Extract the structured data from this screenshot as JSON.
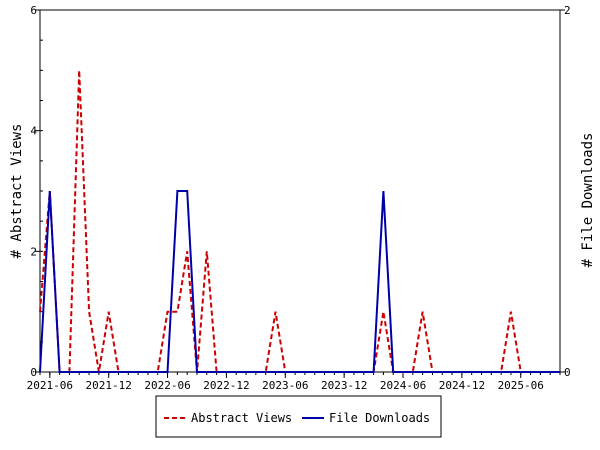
{
  "chart_data": {
    "type": "line",
    "xlabel": "",
    "ylabel_left": "# Abstract Views",
    "ylabel_right": "# File Downloads",
    "xlim": [
      "2021-05",
      "2025-10"
    ],
    "ylim_left": [
      0,
      6
    ],
    "ylim_right": [
      0,
      2
    ],
    "x_ticks": [
      "2021-06",
      "2021-12",
      "2022-06",
      "2022-12",
      "2023-06",
      "2023-12",
      "2024-06",
      "2024-12",
      "2025-06"
    ],
    "y_ticks_left": [
      0,
      2,
      4,
      6
    ],
    "y_ticks_right": [
      0,
      2
    ],
    "legend_position": "bottom",
    "grid": false,
    "colors": {
      "abstract_views": "#cc0000",
      "file_downloads": "#0000aa"
    },
    "series": [
      {
        "name": "Abstract Views",
        "axis": "left",
        "style": "dashed",
        "x": [
          "2021-05",
          "2021-06",
          "2021-07",
          "2021-08",
          "2021-09",
          "2021-10",
          "2021-11",
          "2021-12",
          "2022-01",
          "2022-02",
          "2022-03",
          "2022-04",
          "2022-05",
          "2022-06",
          "2022-07",
          "2022-08",
          "2022-09",
          "2022-10",
          "2022-11",
          "2022-12",
          "2023-01",
          "2023-02",
          "2023-03",
          "2023-04",
          "2023-05",
          "2023-06",
          "2023-07",
          "2023-08",
          "2023-09",
          "2023-10",
          "2023-11",
          "2023-12",
          "2024-01",
          "2024-02",
          "2024-03",
          "2024-04",
          "2024-05",
          "2024-06",
          "2024-07",
          "2024-08",
          "2024-09",
          "2024-10",
          "2024-11",
          "2024-12",
          "2025-01",
          "2025-02",
          "2025-03",
          "2025-04",
          "2025-05",
          "2025-06",
          "2025-07",
          "2025-08",
          "2025-09",
          "2025-10"
        ],
        "values": [
          1,
          3,
          0,
          0,
          5,
          1,
          0,
          1,
          0,
          0,
          0,
          0,
          0,
          1,
          1,
          2,
          0,
          2,
          0,
          0,
          0,
          0,
          0,
          0,
          1,
          0,
          0,
          0,
          0,
          0,
          0,
          0,
          0,
          0,
          0,
          1,
          0,
          0,
          0,
          1,
          0,
          0,
          0,
          0,
          0,
          0,
          0,
          0,
          1,
          0,
          0,
          0,
          0,
          0
        ]
      },
      {
        "name": "File Downloads",
        "axis": "right",
        "style": "solid",
        "x": [
          "2021-05",
          "2021-06",
          "2021-07",
          "2021-08",
          "2021-09",
          "2021-10",
          "2021-11",
          "2021-12",
          "2022-01",
          "2022-02",
          "2022-03",
          "2022-04",
          "2022-05",
          "2022-06",
          "2022-07",
          "2022-08",
          "2022-09",
          "2022-10",
          "2022-11",
          "2022-12",
          "2023-01",
          "2023-02",
          "2023-03",
          "2023-04",
          "2023-05",
          "2023-06",
          "2023-07",
          "2023-08",
          "2023-09",
          "2023-10",
          "2023-11",
          "2023-12",
          "2024-01",
          "2024-02",
          "2024-03",
          "2024-04",
          "2024-05",
          "2024-06",
          "2024-07",
          "2024-08",
          "2024-09",
          "2024-10",
          "2024-11",
          "2024-12",
          "2025-01",
          "2025-02",
          "2025-03",
          "2025-04",
          "2025-05",
          "2025-06",
          "2025-07",
          "2025-08",
          "2025-09",
          "2025-10"
        ],
        "values": [
          0,
          1,
          0,
          0,
          0,
          0,
          0,
          0,
          0,
          0,
          0,
          0,
          0,
          0,
          1,
          1,
          0,
          0,
          0,
          0,
          0,
          0,
          0,
          0,
          0,
          0,
          0,
          0,
          0,
          0,
          0,
          0,
          0,
          0,
          0,
          1,
          0,
          0,
          0,
          0,
          0,
          0,
          0,
          0,
          0,
          0,
          0,
          0,
          0,
          0,
          0,
          0,
          0,
          0
        ]
      }
    ]
  }
}
